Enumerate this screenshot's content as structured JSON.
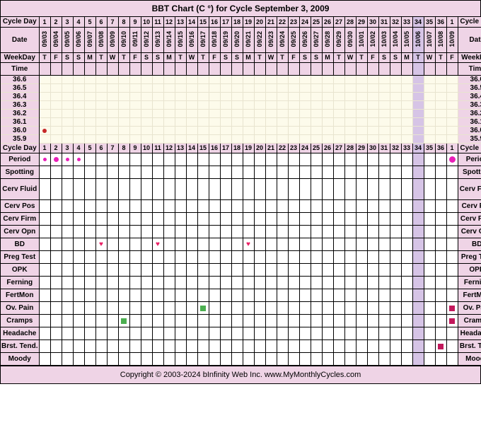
{
  "title": "BBT Chart (C °) for Cycle September 3, 2009",
  "footer": "Copyright © 2003-2024 bInfinity Web Inc.     www.MyMonthlyCycles.com",
  "header_labels": {
    "cycle_day": "Cycle Day",
    "date": "Date",
    "weekday": "WeekDay",
    "time": "Time"
  },
  "cycle_days": [
    "1",
    "2",
    "3",
    "4",
    "5",
    "6",
    "7",
    "8",
    "9",
    "10",
    "11",
    "12",
    "13",
    "14",
    "15",
    "16",
    "17",
    "18",
    "19",
    "20",
    "21",
    "22",
    "23",
    "24",
    "25",
    "26",
    "27",
    "28",
    "29",
    "30",
    "31",
    "32",
    "33",
    "34",
    "35",
    "36",
    "1"
  ],
  "dates": [
    "09/03",
    "09/04",
    "09/05",
    "09/06",
    "09/07",
    "09/08",
    "09/09",
    "09/10",
    "09/11",
    "09/12",
    "09/13",
    "09/14",
    "09/15",
    "09/16",
    "09/17",
    "09/18",
    "09/19",
    "09/20",
    "09/21",
    "09/22",
    "09/23",
    "09/24",
    "09/25",
    "09/26",
    "09/27",
    "09/28",
    "09/29",
    "09/30",
    "10/01",
    "10/02",
    "10/03",
    "10/04",
    "10/05",
    "10/06",
    "10/07",
    "10/08",
    "10/09"
  ],
  "weekdays": [
    "T",
    "F",
    "S",
    "S",
    "M",
    "T",
    "W",
    "T",
    "F",
    "S",
    "S",
    "M",
    "T",
    "W",
    "T",
    "F",
    "S",
    "S",
    "M",
    "T",
    "W",
    "T",
    "F",
    "S",
    "S",
    "M",
    "T",
    "W",
    "T",
    "F",
    "S",
    "S",
    "M",
    "T",
    "W",
    "T",
    "F"
  ],
  "highlight_cols": [
    33
  ],
  "temp_scale": [
    "36.6",
    "36.5",
    "36.4",
    "36.3",
    "36.2",
    "36.1",
    "36.0",
    "35.9"
  ],
  "temp_points": [
    {
      "col": 0,
      "row": "36.0",
      "color": "#c62828"
    }
  ],
  "tracks": [
    {
      "name": "Period",
      "cells": [
        {
          "col": 0,
          "type": "dot",
          "color": "#e91eb8",
          "size": 5
        },
        {
          "col": 1,
          "type": "dot",
          "color": "#e91eb8",
          "size": 7
        },
        {
          "col": 2,
          "type": "dot",
          "color": "#e91eb8",
          "size": 5
        },
        {
          "col": 3,
          "type": "dot",
          "color": "#e91eb8",
          "size": 5
        },
        {
          "col": 36,
          "type": "dot",
          "color": "#e91eb8",
          "size": 9
        }
      ]
    },
    {
      "name": "Spotting",
      "cells": []
    },
    {
      "name": "Cerv Fluid",
      "cells": [],
      "tall": true
    },
    {
      "name": "Cerv Pos",
      "cells": []
    },
    {
      "name": "Cerv Firm",
      "cells": []
    },
    {
      "name": "Cerv Opn",
      "cells": []
    },
    {
      "name": "BD",
      "cells": [
        {
          "col": 5,
          "type": "heart"
        },
        {
          "col": 10,
          "type": "heart"
        },
        {
          "col": 18,
          "type": "heart"
        }
      ]
    },
    {
      "name": "Preg Test",
      "cells": []
    },
    {
      "name": "OPK",
      "cells": []
    },
    {
      "name": "Ferning",
      "cells": []
    },
    {
      "name": "FertMon",
      "cells": []
    },
    {
      "name": "Ov. Pain",
      "cells": [
        {
          "col": 14,
          "type": "sq",
          "color": "#4caf50"
        },
        {
          "col": 36,
          "type": "sq",
          "color": "#c2185b"
        }
      ]
    },
    {
      "name": "Cramps",
      "cells": [
        {
          "col": 7,
          "type": "sq",
          "color": "#4caf50"
        },
        {
          "col": 36,
          "type": "sq",
          "color": "#c2185b"
        }
      ]
    },
    {
      "name": "Headache",
      "cells": []
    },
    {
      "name": "Brst. Tend.",
      "cells": [
        {
          "col": 35,
          "type": "sq",
          "color": "#c2185b"
        }
      ],
      "right_label": "Brst. Tend"
    },
    {
      "name": "Moody",
      "cells": []
    }
  ],
  "colors": {
    "bg_header": "#efd4e6",
    "bg_temp": "#fdfbeb",
    "bg_hl": "#d6c4e6"
  }
}
